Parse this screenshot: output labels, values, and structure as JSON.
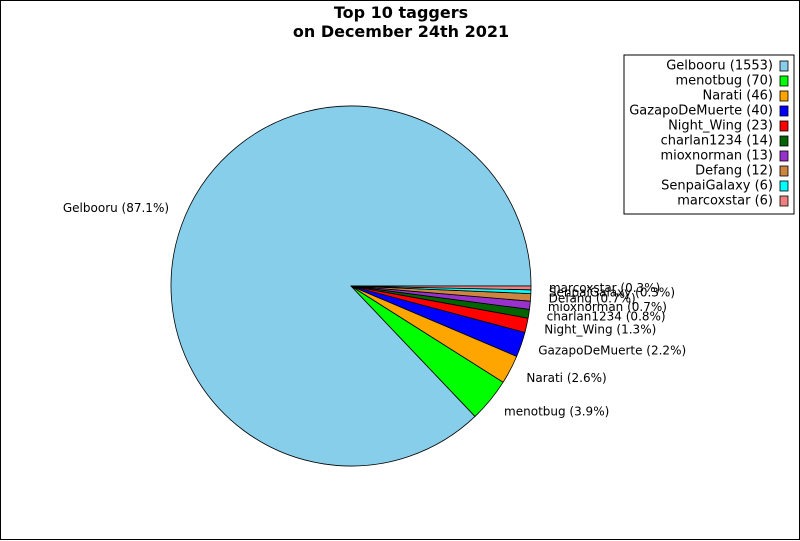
{
  "chart_data": {
    "type": "pie",
    "title_line1": "Top 10 taggers",
    "title_line2": "on December 24th 2021",
    "slices": [
      {
        "name": "Gelbooru",
        "value": 1553,
        "pct": "87.1%",
        "color": "#87ceeb"
      },
      {
        "name": "menotbug",
        "value": 70,
        "pct": "3.9%",
        "color": "#00ff00"
      },
      {
        "name": "Narati",
        "value": 46,
        "pct": "2.6%",
        "color": "#ffa500"
      },
      {
        "name": "GazapoDeMuerte",
        "value": 40,
        "pct": "2.2%",
        "color": "#0000ff"
      },
      {
        "name": "Night_Wing",
        "value": 23,
        "pct": "1.3%",
        "color": "#ff0000"
      },
      {
        "name": "charlan1234",
        "value": 14,
        "pct": "0.8%",
        "color": "#006400"
      },
      {
        "name": "mioxnorman",
        "value": 13,
        "pct": "0.7%",
        "color": "#9932cc"
      },
      {
        "name": "Defang",
        "value": 12,
        "pct": "0.7%",
        "color": "#cd853f"
      },
      {
        "name": "SenpaiGalaxy",
        "value": 6,
        "pct": "0.3%",
        "color": "#00ffff"
      },
      {
        "name": "marcoxstar",
        "value": 6,
        "pct": "0.3%",
        "color": "#f08080"
      }
    ],
    "legend_position": "top-right"
  }
}
